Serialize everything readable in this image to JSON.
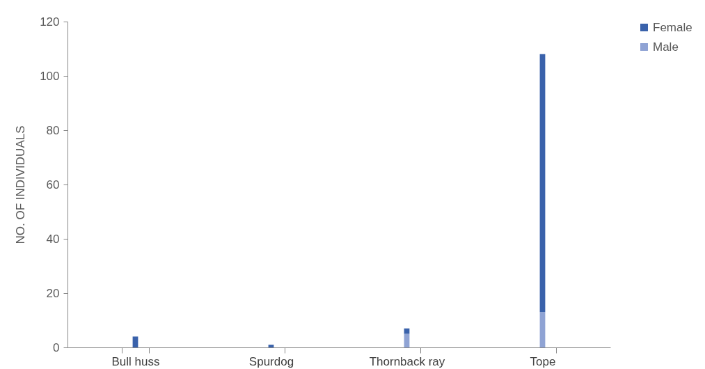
{
  "chart_data": {
    "type": "bar",
    "stacked": true,
    "ylabel": "NO. OF INDIVIDUALS",
    "categories": [
      "Bull huss",
      "Spurdog",
      "Thornback ray",
      "Tope"
    ],
    "series": [
      {
        "name": "Male",
        "color": "#8fa3d4",
        "values": [
          0,
          0,
          5,
          13
        ]
      },
      {
        "name": "Female",
        "color": "#3a62ab",
        "values": [
          4,
          1,
          2,
          95
        ]
      }
    ],
    "ylim": [
      0,
      120
    ],
    "yticks": [
      0,
      20,
      40,
      60,
      80,
      100,
      120
    ],
    "grid": false,
    "legend": "right"
  }
}
